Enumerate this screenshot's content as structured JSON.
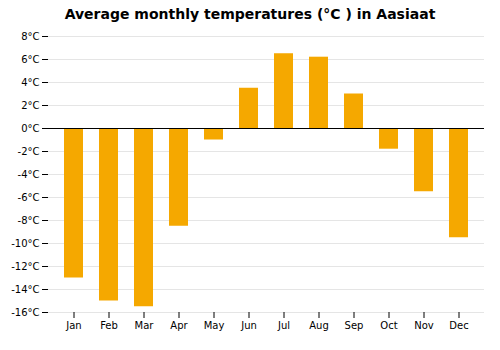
{
  "chart_data": {
    "type": "bar",
    "title": "Average monthly temperatures (°C ) in Aasiaat",
    "categories": [
      "Jan",
      "Feb",
      "Mar",
      "Apr",
      "May",
      "Jun",
      "Jul",
      "Aug",
      "Sep",
      "Oct",
      "Nov",
      "Dec"
    ],
    "values": [
      -13,
      -15,
      -15.5,
      -8.5,
      -1,
      3.5,
      6.5,
      6.2,
      3,
      -1.8,
      -5.5,
      -9.5
    ],
    "color": "#F5A800",
    "ylim": [
      -16,
      8
    ],
    "yticks": [
      {
        "value": -16,
        "label": "-16°C"
      },
      {
        "value": -14,
        "label": "-14°C"
      },
      {
        "value": -12,
        "label": "-12°C"
      },
      {
        "value": -10,
        "label": "-10°C"
      },
      {
        "value": -8,
        "label": "-8°C"
      },
      {
        "value": -6,
        "label": "-6°C"
      },
      {
        "value": -4,
        "label": "-4°C"
      },
      {
        "value": -2,
        "label": "-2°C"
      },
      {
        "value": 0,
        "label": "0°C"
      },
      {
        "value": 2,
        "label": "2°C"
      },
      {
        "value": 4,
        "label": "4°C"
      },
      {
        "value": 6,
        "label": "6°C"
      },
      {
        "value": 8,
        "label": "8°C"
      }
    ],
    "grid": true
  }
}
